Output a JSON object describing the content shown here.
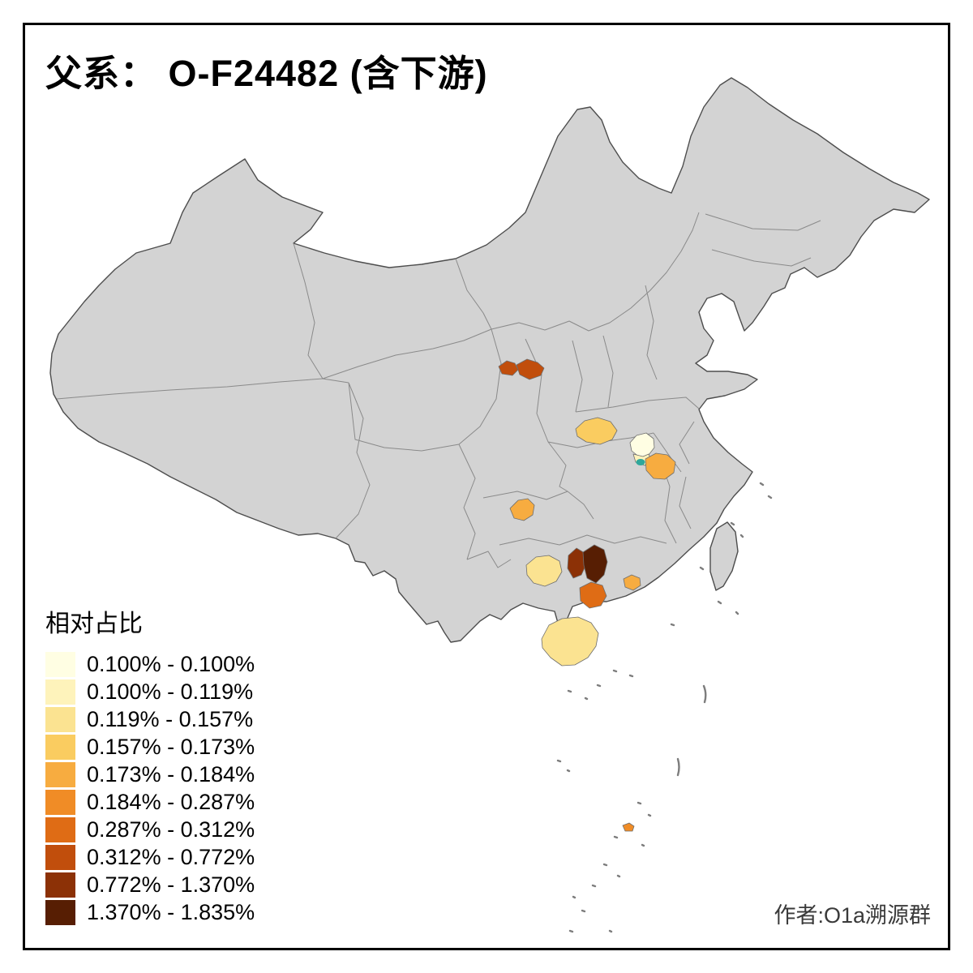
{
  "title": "父系： O-F24482 (含下游)",
  "author": "作者:O1a溯源群",
  "legend": {
    "title": "相对占比",
    "bins": [
      {
        "label": "0.100% - 0.100%",
        "color": "#FFFEE3"
      },
      {
        "label": "0.100% - 0.119%",
        "color": "#FEF3BB"
      },
      {
        "label": "0.119% - 0.157%",
        "color": "#FBE391"
      },
      {
        "label": "0.157% - 0.173%",
        "color": "#FACC60"
      },
      {
        "label": "0.173% - 0.184%",
        "color": "#F7AC40"
      },
      {
        "label": "0.184% - 0.287%",
        "color": "#F08C26"
      },
      {
        "label": "0.287% - 0.312%",
        "color": "#DF6C15"
      },
      {
        "label": "0.312% - 0.772%",
        "color": "#C14E0C"
      },
      {
        "label": "0.772% - 1.370%",
        "color": "#8C3106"
      },
      {
        "label": "1.370% - 1.835%",
        "color": "#571E03"
      }
    ]
  },
  "map": {
    "base_fill": "#D3D3D3",
    "outline_color": "#4D4D4D",
    "inner_border_color": "#8A8A8A",
    "water_marker_color": "#2FA79B"
  }
}
